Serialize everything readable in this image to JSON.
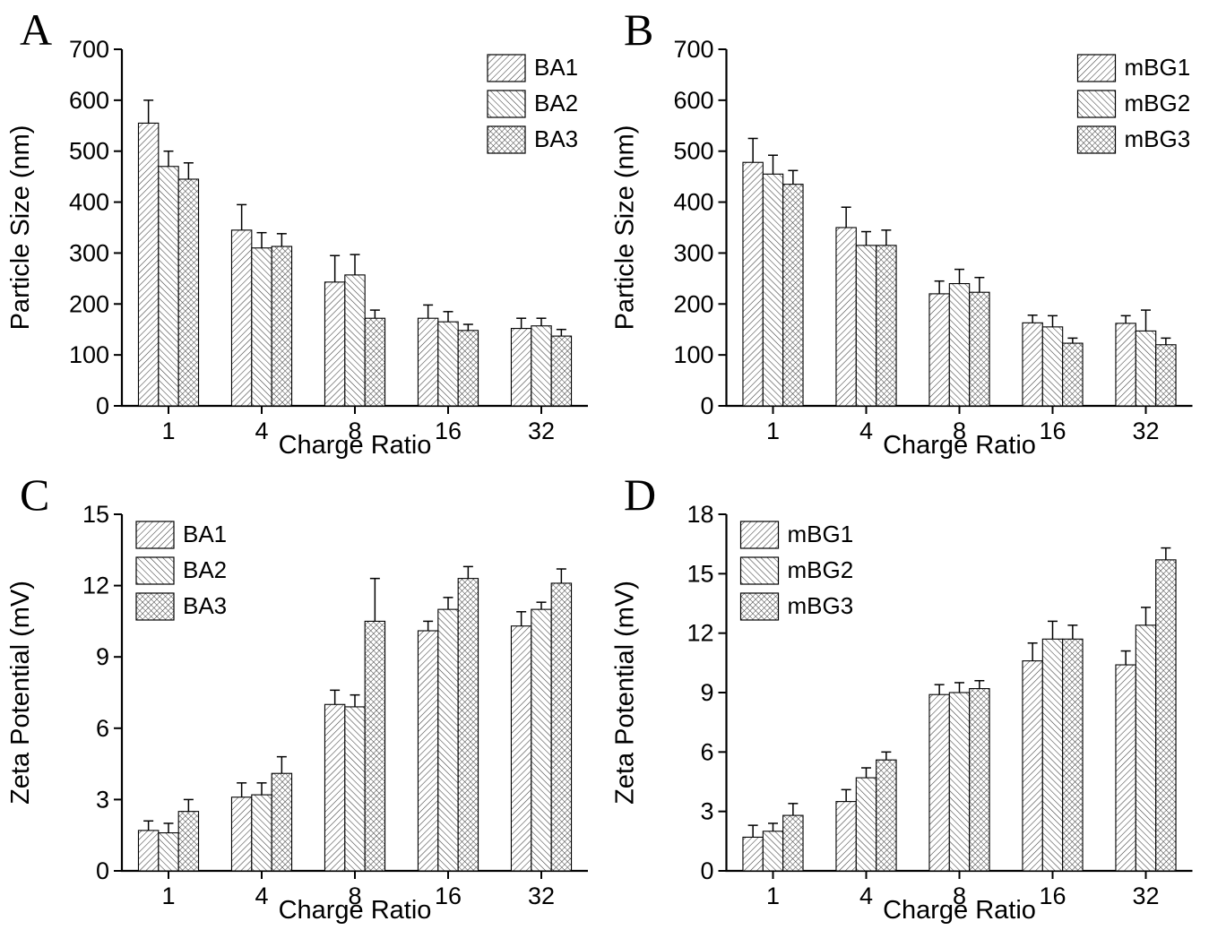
{
  "figure_title": "",
  "hatch_color": "#3c3c3c",
  "axis_color": "#000000",
  "chart_data": [
    {
      "label": "A",
      "type": "bar",
      "title": "",
      "xlabel": "Charge Ratio",
      "ylabel": "Particle Size (nm)",
      "ylim": [
        0,
        700
      ],
      "ytick_step": 100,
      "grid": false,
      "categories": [
        "1",
        "4",
        "8",
        "16",
        "32"
      ],
      "legend_position": "top-right",
      "series": [
        {
          "name": "BA1",
          "hatch": "diag-up",
          "values": [
            555,
            345,
            243,
            172,
            152
          ],
          "errors": [
            45,
            50,
            52,
            26,
            20
          ]
        },
        {
          "name": "BA2",
          "hatch": "diag-down",
          "values": [
            470,
            310,
            257,
            165,
            157
          ],
          "errors": [
            30,
            30,
            40,
            20,
            15
          ]
        },
        {
          "name": "BA3",
          "hatch": "cross",
          "values": [
            445,
            313,
            172,
            148,
            137
          ],
          "errors": [
            32,
            25,
            16,
            12,
            13
          ]
        }
      ]
    },
    {
      "label": "B",
      "type": "bar",
      "title": "",
      "xlabel": "Charge Ratio",
      "ylabel": "Particle Size (nm)",
      "ylim": [
        0,
        700
      ],
      "ytick_step": 100,
      "grid": false,
      "categories": [
        "1",
        "4",
        "8",
        "16",
        "32"
      ],
      "legend_position": "top-right",
      "series": [
        {
          "name": "mBG1",
          "hatch": "diag-up",
          "values": [
            478,
            350,
            220,
            163,
            162
          ],
          "errors": [
            47,
            40,
            25,
            15,
            15
          ]
        },
        {
          "name": "mBG2",
          "hatch": "diag-down",
          "values": [
            455,
            315,
            240,
            155,
            147
          ],
          "errors": [
            37,
            27,
            28,
            22,
            41
          ]
        },
        {
          "name": "mBG3",
          "hatch": "cross",
          "values": [
            435,
            315,
            223,
            123,
            120
          ],
          "errors": [
            27,
            30,
            29,
            10,
            13
          ]
        }
      ]
    },
    {
      "label": "C",
      "type": "bar",
      "title": "",
      "xlabel": "Charge Ratio",
      "ylabel": "Zeta Potential (mV)",
      "ylim": [
        0,
        15
      ],
      "ytick_step": 3,
      "grid": false,
      "categories": [
        "1",
        "4",
        "8",
        "16",
        "32"
      ],
      "legend_position": "top-left",
      "series": [
        {
          "name": "BA1",
          "hatch": "diag-up",
          "values": [
            1.7,
            3.1,
            7.0,
            10.1,
            10.3
          ],
          "errors": [
            0.4,
            0.6,
            0.6,
            0.4,
            0.6
          ]
        },
        {
          "name": "BA2",
          "hatch": "diag-down",
          "values": [
            1.6,
            3.2,
            6.9,
            11.0,
            11.0
          ],
          "errors": [
            0.4,
            0.5,
            0.5,
            0.5,
            0.3
          ]
        },
        {
          "name": "BA3",
          "hatch": "cross",
          "values": [
            2.5,
            4.1,
            10.5,
            12.3,
            12.1
          ],
          "errors": [
            0.5,
            0.7,
            1.8,
            0.5,
            0.6
          ]
        }
      ]
    },
    {
      "label": "D",
      "type": "bar",
      "title": "",
      "xlabel": "Charge Ratio",
      "ylabel": "Zeta Potential (mV)",
      "ylim": [
        0,
        18
      ],
      "ytick_step": 3,
      "grid": false,
      "categories": [
        "1",
        "4",
        "8",
        "16",
        "32"
      ],
      "legend_position": "top-left",
      "series": [
        {
          "name": "mBG1",
          "hatch": "diag-up",
          "values": [
            1.7,
            3.5,
            8.9,
            10.6,
            10.4
          ],
          "errors": [
            0.6,
            0.6,
            0.5,
            0.9,
            0.7
          ]
        },
        {
          "name": "mBG2",
          "hatch": "diag-down",
          "values": [
            2.0,
            4.7,
            9.0,
            11.7,
            12.4
          ],
          "errors": [
            0.4,
            0.5,
            0.5,
            0.9,
            0.9
          ]
        },
        {
          "name": "mBG3",
          "hatch": "cross",
          "values": [
            2.8,
            5.6,
            9.2,
            11.7,
            15.7
          ],
          "errors": [
            0.6,
            0.4,
            0.4,
            0.7,
            0.6
          ]
        }
      ]
    }
  ]
}
